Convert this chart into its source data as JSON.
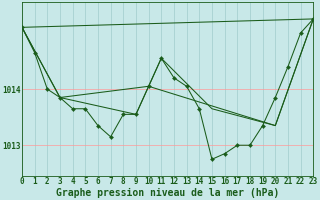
{
  "title": "Graphe pression niveau de la mer (hPa)",
  "background_color": "#c8e8e8",
  "line_color": "#1a5c1a",
  "xlim": [
    0,
    23
  ],
  "ylim": [
    1012.45,
    1015.55
  ],
  "yticks": [
    1013,
    1014
  ],
  "xticks": [
    0,
    1,
    2,
    3,
    4,
    5,
    6,
    7,
    8,
    9,
    10,
    11,
    12,
    13,
    14,
    15,
    16,
    17,
    18,
    19,
    20,
    21,
    22,
    23
  ],
  "main_x": [
    0,
    1,
    2,
    3,
    4,
    5,
    6,
    7,
    8,
    9,
    10,
    11,
    12,
    13,
    14,
    15,
    16,
    17,
    18,
    19,
    20,
    21,
    22,
    23
  ],
  "main_y": [
    1015.1,
    1014.65,
    1014.0,
    1013.85,
    1013.65,
    1013.65,
    1013.35,
    1013.15,
    1013.55,
    1013.55,
    1014.05,
    1014.55,
    1014.2,
    1014.05,
    1013.65,
    1012.75,
    1012.85,
    1013.0,
    1013.0,
    1013.35,
    1013.85,
    1014.4,
    1015.0,
    1015.25
  ],
  "trend1_x": [
    0,
    23
  ],
  "trend1_y": [
    1015.1,
    1015.25
  ],
  "trend2_x": [
    0,
    3,
    10,
    20,
    23
  ],
  "trend2_y": [
    1015.1,
    1013.85,
    1014.05,
    1013.35,
    1015.25
  ],
  "trend3_x": [
    0,
    3,
    9,
    11,
    15,
    20,
    23
  ],
  "trend3_y": [
    1015.1,
    1013.85,
    1013.55,
    1014.55,
    1013.65,
    1013.35,
    1015.25
  ],
  "hgrid_color": "#ff9999",
  "vgrid_color": "#a0cccc",
  "tick_fontsize": 5.5,
  "title_fontsize": 7,
  "marker_size": 2.2,
  "linewidth": 0.75
}
